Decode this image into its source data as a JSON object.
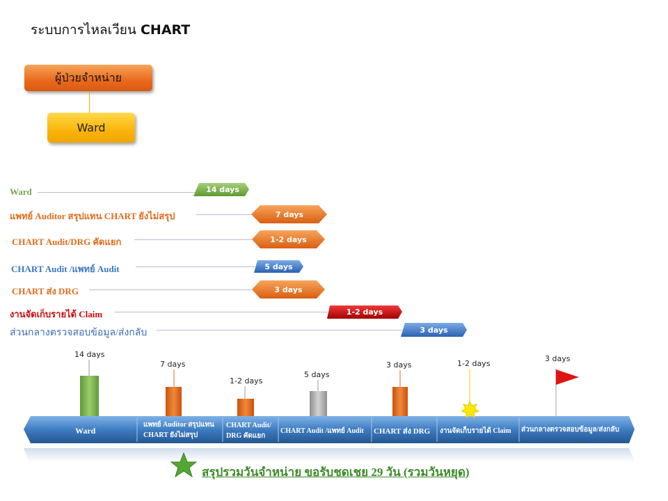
{
  "title": {
    "prefix": "ระบบการไหลเวียน",
    "emphasis": "CHART"
  },
  "flow": {
    "patient_box": "ผู้ป่วยจำหน่าย",
    "ward_box": "Ward"
  },
  "rows": [
    {
      "label": "Ward",
      "duration": "14 days",
      "color": "#74a84a"
    },
    {
      "label": "แพทย์  Auditor สรุปแทน  CHART ยังไม่สรุป",
      "duration": "7 days",
      "color": "#e26b1a"
    },
    {
      "label": "CHART Audit/DRG คัดแยก",
      "duration": "1-2 days",
      "color": "#e26b1a"
    },
    {
      "label": "CHART Audit /แพทย์   Audit",
      "duration": "5 days",
      "color": "#3d77c4"
    },
    {
      "label": "CHART ส่ง DRG",
      "duration": "3 days",
      "color": "#e26b1a"
    },
    {
      "label": "งานจัดเก็บรายได้ Claim",
      "duration": "1-2 days",
      "color": "#cc0a0a"
    },
    {
      "label": "ส่วนกลางตรวจสอบข้อมูล/ส่งกลับ",
      "duration": "3 days",
      "color": "#3d6ab6"
    }
  ],
  "timeline": {
    "markers": [
      "14 days",
      "7 days",
      "1-2 days",
      "5 days",
      "3 days",
      "1-2 days",
      "3 days"
    ],
    "segments": [
      "Ward",
      "แพทย์ Auditor สรุปแทน CHART ยังไม่สรุป",
      "CHART Audit/ DRG คัดแยก",
      "CHART Audit /แพทย์ Audit",
      "CHART ส่ง DRG",
      "งานจัดเก็บรายได้ Claim",
      "ส่วนกลางตรวจสอบข้อมูล/ส่งกลับ"
    ]
  },
  "summary": "สรุปรวมวันจำหน่าย ขอรับชดเชย 29 วัน (รวมวันหยุด)"
}
